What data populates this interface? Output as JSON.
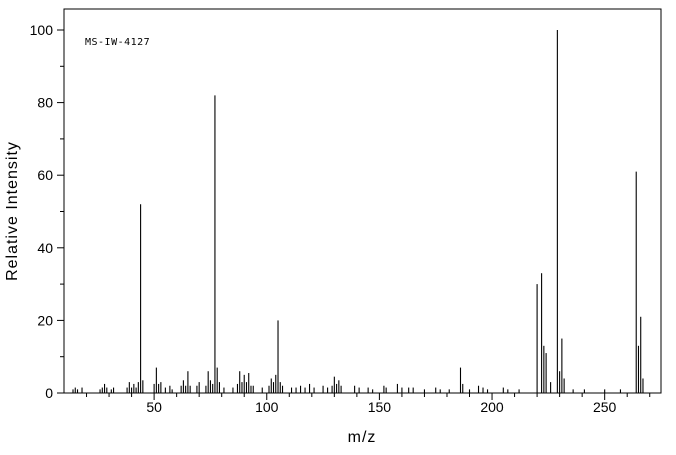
{
  "chart_data": {
    "type": "bar",
    "subtype": "mass-spectrum",
    "label": "MS-IW-4127",
    "xlabel": "m/z",
    "ylabel": "Relative Intensity",
    "xlim": [
      10,
      275
    ],
    "ylim": [
      0,
      100
    ],
    "x_major_ticks": [
      50,
      100,
      150,
      200,
      250
    ],
    "x_minor_tick_step": 10,
    "y_major_ticks": [
      0,
      20,
      40,
      60,
      80,
      100
    ],
    "y_minor_tick_step": 10,
    "grid": false,
    "legend": "none",
    "line_color": "#000000",
    "background_color": "#ffffff",
    "peaks": [
      [
        14,
        1
      ],
      [
        15,
        1.5
      ],
      [
        16,
        1
      ],
      [
        18,
        1.5
      ],
      [
        26,
        1
      ],
      [
        27,
        1.5
      ],
      [
        28,
        2.5
      ],
      [
        29,
        1.5
      ],
      [
        31,
        1
      ],
      [
        32,
        1.5
      ],
      [
        38,
        1.5
      ],
      [
        39,
        3
      ],
      [
        40,
        1.5
      ],
      [
        41,
        2.5
      ],
      [
        42,
        1.5
      ],
      [
        43,
        3
      ],
      [
        44,
        52
      ],
      [
        45,
        3.5
      ],
      [
        50,
        2.5
      ],
      [
        51,
        7
      ],
      [
        52,
        2.5
      ],
      [
        53,
        3
      ],
      [
        55,
        1.5
      ],
      [
        57,
        2
      ],
      [
        58,
        1
      ],
      [
        62,
        2
      ],
      [
        63,
        3.5
      ],
      [
        64,
        2
      ],
      [
        65,
        6
      ],
      [
        66,
        2
      ],
      [
        69,
        2
      ],
      [
        70,
        3
      ],
      [
        73,
        2
      ],
      [
        74,
        6
      ],
      [
        75,
        3.5
      ],
      [
        76,
        2.5
      ],
      [
        77,
        82
      ],
      [
        78,
        7
      ],
      [
        79,
        3
      ],
      [
        81,
        1.5
      ],
      [
        85,
        1.5
      ],
      [
        87,
        2.5
      ],
      [
        88,
        6
      ],
      [
        89,
        3
      ],
      [
        90,
        5
      ],
      [
        91,
        3
      ],
      [
        92,
        5.5
      ],
      [
        93,
        2
      ],
      [
        94,
        2
      ],
      [
        98,
        1.5
      ],
      [
        101,
        2
      ],
      [
        102,
        4
      ],
      [
        103,
        3
      ],
      [
        104,
        5
      ],
      [
        105,
        20
      ],
      [
        106,
        3
      ],
      [
        107,
        2
      ],
      [
        111,
        1.5
      ],
      [
        113,
        1.5
      ],
      [
        115,
        2
      ],
      [
        117,
        1.5
      ],
      [
        119,
        2.5
      ],
      [
        121,
        1.5
      ],
      [
        125,
        2
      ],
      [
        127,
        1.5
      ],
      [
        129,
        2
      ],
      [
        130,
        4.5
      ],
      [
        131,
        2.5
      ],
      [
        132,
        3.5
      ],
      [
        133,
        2
      ],
      [
        139,
        2
      ],
      [
        141,
        1.5
      ],
      [
        145,
        1.5
      ],
      [
        147,
        1
      ],
      [
        152,
        2
      ],
      [
        153,
        1.5
      ],
      [
        158,
        2.5
      ],
      [
        160,
        1.5
      ],
      [
        163,
        1.5
      ],
      [
        165,
        1.5
      ],
      [
        170,
        1
      ],
      [
        175,
        1.5
      ],
      [
        177,
        1
      ],
      [
        181,
        1
      ],
      [
        186,
        7
      ],
      [
        187,
        2.5
      ],
      [
        190,
        1
      ],
      [
        194,
        2
      ],
      [
        196,
        1.5
      ],
      [
        198,
        1
      ],
      [
        205,
        1.5
      ],
      [
        207,
        1
      ],
      [
        212,
        1
      ],
      [
        220,
        30
      ],
      [
        222,
        33
      ],
      [
        223,
        13
      ],
      [
        224,
        11
      ],
      [
        226,
        3
      ],
      [
        229,
        100
      ],
      [
        230,
        6
      ],
      [
        231,
        15
      ],
      [
        232,
        4
      ],
      [
        236,
        1
      ],
      [
        241,
        1
      ],
      [
        250,
        1
      ],
      [
        257,
        1
      ],
      [
        264,
        61
      ],
      [
        265,
        13
      ],
      [
        266,
        21
      ],
      [
        267,
        4
      ]
    ]
  }
}
